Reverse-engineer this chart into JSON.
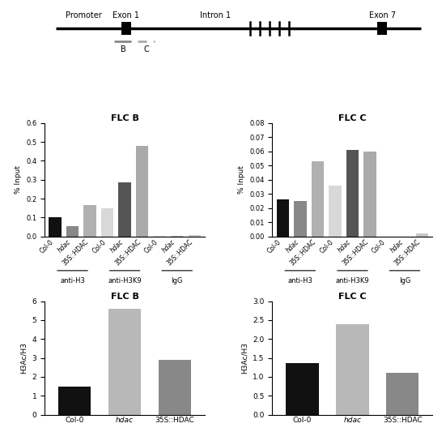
{
  "gene_diagram": {
    "promoter_label": "Promoter",
    "exon1_label": "Exon 1",
    "intron1_label": "Intron 1",
    "exon7_label": "Exon 7",
    "b_label": "B",
    "c_label": "C"
  },
  "flcB_top": {
    "title": "FLC B",
    "ylabel": "% Input",
    "ylim": [
      0,
      0.6
    ],
    "yticks": [
      0.0,
      0.1,
      0.2,
      0.3,
      0.4,
      0.5,
      0.6
    ],
    "values": [
      0.1,
      0.055,
      0.165,
      0.148,
      0.287,
      0.478,
      0.002,
      0.002,
      0.008
    ],
    "bar_colors": [
      "#111111",
      "#888888",
      "#b0b0b0",
      "#d8d8d8",
      "#555555",
      "#aaaaaa",
      "#d8d8d8",
      "#b0b0b0",
      "#c8c8c8"
    ],
    "tick_labels": [
      "Col-0",
      "hdac",
      "35S::HDAC",
      "Col-0",
      "hdac",
      "35S::HDAC",
      "Col-0",
      "hdac",
      "35S::HDAC"
    ],
    "tick_italic": [
      false,
      true,
      false,
      false,
      true,
      false,
      false,
      true,
      false
    ],
    "group_labels": [
      "anti-H3",
      "anti-H3K9",
      "IgG"
    ],
    "group_centers": [
      1,
      4,
      7
    ]
  },
  "flcC_top": {
    "title": "FLC C",
    "ylabel": "% Input",
    "ylim": [
      0,
      0.08
    ],
    "yticks": [
      0.0,
      0.01,
      0.02,
      0.03,
      0.04,
      0.05,
      0.06,
      0.07,
      0.08
    ],
    "values": [
      0.026,
      0.025,
      0.053,
      0.036,
      0.061,
      0.06,
      0.0,
      0.0,
      0.002
    ],
    "bar_colors": [
      "#111111",
      "#888888",
      "#b0b0b0",
      "#d8d8d8",
      "#555555",
      "#aaaaaa",
      "#d8d8d8",
      "#b0b0b0",
      "#c8c8c8"
    ],
    "tick_labels": [
      "Col-0",
      "hdac",
      "35S::HDAC",
      "Col-0",
      "hdac",
      "35S::HDAC",
      "Col-0",
      "hdac",
      "35S::HDAC"
    ],
    "tick_italic": [
      false,
      true,
      false,
      false,
      true,
      false,
      false,
      true,
      false
    ],
    "group_labels": [
      "anti-H3",
      "anti-H3K9",
      "IgG"
    ],
    "group_centers": [
      1,
      4,
      7
    ]
  },
  "flcB_bottom": {
    "title": "FLC B",
    "ylabel": "H3Ac/H3",
    "ylim": [
      0,
      6
    ],
    "yticks": [
      0,
      1,
      2,
      3,
      4,
      5,
      6
    ],
    "values": [
      1.5,
      5.6,
      2.9
    ],
    "bar_colors": [
      "#111111",
      "#b8b8b8",
      "#888888"
    ],
    "tick_labels": [
      "Col-0",
      "hdac",
      "35S::HDAC"
    ],
    "tick_italic": [
      false,
      true,
      false
    ]
  },
  "flcC_bottom": {
    "title": "FLC C",
    "ylabel": "H3Ac/H3",
    "ylim": [
      0,
      3.0
    ],
    "yticks": [
      0.0,
      0.5,
      1.0,
      1.5,
      2.0,
      2.5,
      3.0
    ],
    "values": [
      1.37,
      2.4,
      1.1
    ],
    "bar_colors": [
      "#111111",
      "#b8b8b8",
      "#888888"
    ],
    "tick_labels": [
      "Col-0",
      "hdac",
      "35S::HDAC"
    ],
    "tick_italic": [
      false,
      true,
      false
    ]
  }
}
